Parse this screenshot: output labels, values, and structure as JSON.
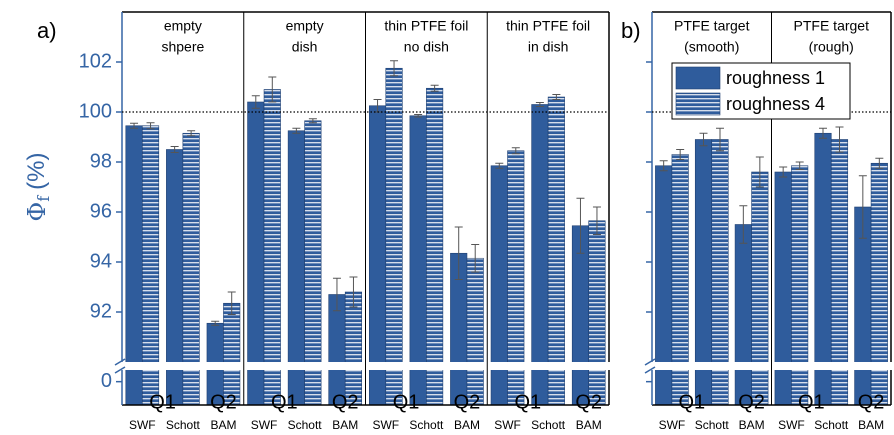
{
  "chart_data": [
    {
      "type": "bar",
      "panel_label": "a)",
      "ylabel": {
        "symbol": "Φ",
        "subscript": "f",
        "unit": "(%)"
      },
      "ylim": [
        -1,
        104
      ],
      "ybreak": [
        0.5,
        90
      ],
      "yticks": [
        0,
        92,
        94,
        96,
        98,
        100,
        102
      ],
      "tick_labels": true,
      "reference_line": 100,
      "groups": [
        {
          "title": [
            "empty",
            "shpere"
          ],
          "quality": [
            "Q1",
            "Q2"
          ],
          "categories": [
            "SWF",
            "Schott",
            "BAM"
          ]
        },
        {
          "title": [
            "empty",
            "dish"
          ],
          "quality": [
            "Q1",
            "Q2"
          ],
          "categories": [
            "SWF",
            "Schott",
            "BAM"
          ]
        },
        {
          "title": [
            "thin PTFE foil",
            "no dish"
          ],
          "quality": [
            "Q1",
            "Q2"
          ],
          "categories": [
            "SWF",
            "Schott",
            "BAM"
          ]
        },
        {
          "title": [
            "thin PTFE foil",
            "in dish"
          ],
          "quality": [
            "Q1",
            "Q2"
          ],
          "categories": [
            "SWF",
            "Schott",
            "BAM"
          ]
        }
      ],
      "series": [
        {
          "name": "roughness 1",
          "color": "#2f5c9c",
          "pattern": "solid",
          "values": [
            99.45,
            98.5,
            91.55,
            100.4,
            99.25,
            92.7,
            100.25,
            99.85,
            94.35,
            97.85,
            100.3,
            95.45
          ],
          "errors": [
            0.1,
            0.12,
            0.08,
            0.25,
            0.1,
            0.65,
            0.25,
            0.05,
            1.05,
            0.1,
            0.08,
            1.1
          ]
        },
        {
          "name": "roughness 4",
          "color": "#2f5c9c",
          "pattern": "stripes",
          "values": [
            99.45,
            99.15,
            92.35,
            100.9,
            99.65,
            92.8,
            101.75,
            100.95,
            94.15,
            98.45,
            100.6,
            95.65
          ],
          "errors": [
            0.12,
            0.1,
            0.45,
            0.5,
            0.08,
            0.6,
            0.3,
            0.12,
            0.55,
            0.12,
            0.1,
            0.55
          ]
        }
      ]
    },
    {
      "type": "bar",
      "panel_label": "b)",
      "ylim": [
        -1,
        104
      ],
      "ybreak": [
        0.5,
        90
      ],
      "yticks": [
        0,
        92,
        94,
        96,
        98,
        100,
        102
      ],
      "tick_labels": false,
      "reference_line": 100,
      "legend": "top-right",
      "groups": [
        {
          "title": [
            "PTFE target",
            "(smooth)"
          ],
          "quality": [
            "Q1",
            "Q2"
          ],
          "categories": [
            "SWF",
            "Schott",
            "BAM"
          ]
        },
        {
          "title": [
            "PTFE target",
            "(rough)"
          ],
          "quality": [
            "Q1",
            "Q2"
          ],
          "categories": [
            "SWF",
            "Schott",
            "BAM"
          ]
        }
      ],
      "series": [
        {
          "name": "roughness 1",
          "color": "#2f5c9c",
          "pattern": "solid",
          "values": [
            97.85,
            98.9,
            95.5,
            97.6,
            99.15,
            96.2
          ],
          "errors": [
            0.2,
            0.25,
            0.75,
            0.2,
            0.2,
            1.25
          ]
        },
        {
          "name": "roughness 4",
          "color": "#2f5c9c",
          "pattern": "stripes",
          "values": [
            98.3,
            98.9,
            97.6,
            97.85,
            98.9,
            97.95
          ],
          "errors": [
            0.2,
            0.45,
            0.6,
            0.15,
            0.5,
            0.2
          ]
        }
      ]
    }
  ]
}
